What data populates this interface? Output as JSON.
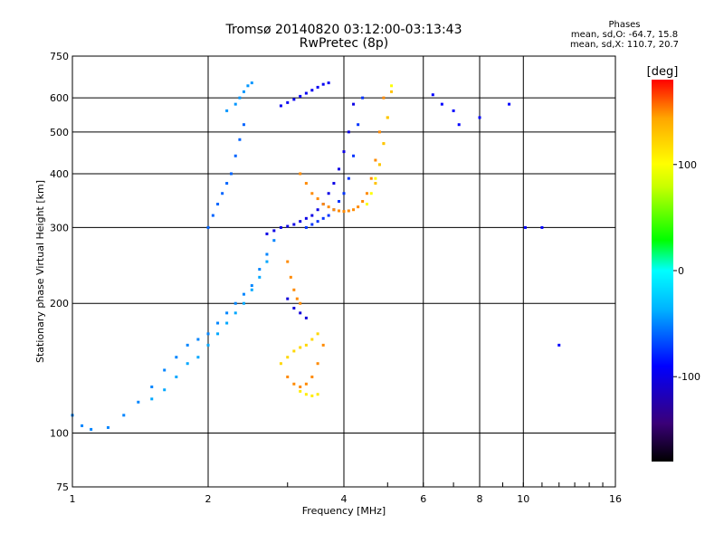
{
  "title_line1": "Tromsø 20140820 03:12:00-03:13:43",
  "title_line2": "RwPretec (8p)",
  "stats": {
    "heading": "Phases",
    "line1": "mean, sd,O: -64.7, 15.8",
    "line2": "mean, sd,X: 110.7, 20.7"
  },
  "chart_data": {
    "type": "scatter",
    "title": "Tromsø 20140820 03:12:00-03:13:43",
    "subtitle": "RwPretec (8p)",
    "xlabel": "Frequency [MHz]",
    "ylabel": "Stationary phase Virtual Height [km]",
    "x_scale": "log",
    "y_scale": "log",
    "xlim": [
      1,
      16
    ],
    "ylim": [
      75,
      750
    ],
    "x_ticks": [
      1,
      2,
      4,
      6,
      8,
      10,
      16
    ],
    "y_ticks": [
      75,
      100,
      200,
      300,
      400,
      500,
      600,
      750
    ],
    "grid": true,
    "colorbar": {
      "label": "[deg]",
      "range": [
        -180,
        180
      ],
      "ticks": [
        100,
        0,
        -100
      ],
      "colors": [
        "#000000",
        "#3a0078",
        "#0000ff",
        "#00b4ff",
        "#00ffff",
        "#00ff00",
        "#c8ff00",
        "#ffff00",
        "#ffa500",
        "#ff0000"
      ]
    },
    "series": [
      {
        "x": [
          1.0,
          1.05,
          1.1,
          1.2,
          1.3,
          1.4,
          1.5,
          1.6,
          1.7,
          1.8,
          1.9,
          2.0,
          2.1,
          2.2,
          2.3,
          2.4,
          2.5,
          2.6,
          2.7,
          2.8
        ],
        "y": [
          110,
          104,
          102,
          103,
          110,
          118,
          128,
          140,
          150,
          160,
          165,
          170,
          180,
          190,
          200,
          210,
          220,
          240,
          260,
          280
        ],
        "phase": -50
      },
      {
        "x": [
          1.5,
          1.6,
          1.7,
          1.8,
          1.9,
          2.0,
          2.1,
          2.2,
          2.3,
          2.4,
          2.5,
          2.6,
          2.7
        ],
        "y": [
          120,
          126,
          135,
          145,
          150,
          160,
          170,
          180,
          190,
          200,
          215,
          230,
          250
        ],
        "phase": -40
      },
      {
        "x": [
          2.0,
          2.05,
          2.1,
          2.15,
          2.2,
          2.25,
          2.3,
          2.35,
          2.4
        ],
        "y": [
          300,
          320,
          340,
          360,
          380,
          400,
          440,
          480,
          520
        ],
        "phase": -60
      },
      {
        "x": [
          2.2,
          2.3,
          2.35,
          2.4,
          2.45,
          2.5
        ],
        "y": [
          560,
          580,
          600,
          620,
          640,
          650
        ],
        "phase": -45
      },
      {
        "x": [
          2.7,
          2.8,
          2.9,
          3.0,
          3.1,
          3.2,
          3.3,
          3.4,
          3.5,
          3.6,
          3.7,
          3.8,
          3.9,
          4.0,
          4.1,
          4.2
        ],
        "y": [
          290,
          295,
          300,
          302,
          305,
          310,
          315,
          320,
          330,
          340,
          360,
          380,
          410,
          450,
          500,
          580
        ],
        "phase": -100
      },
      {
        "x": [
          2.9,
          3.0,
          3.1,
          3.2,
          3.3,
          3.4,
          3.5,
          3.6,
          3.7
        ],
        "y": [
          575,
          585,
          595,
          605,
          615,
          625,
          635,
          645,
          650
        ],
        "phase": -95
      },
      {
        "x": [
          3.3,
          3.4,
          3.5,
          3.6,
          3.7,
          3.8,
          3.9,
          4.0,
          4.1,
          4.2,
          4.3,
          4.4
        ],
        "y": [
          300,
          305,
          310,
          315,
          320,
          330,
          345,
          360,
          390,
          440,
          520,
          600
        ],
        "phase": -75
      },
      {
        "x": [
          3.2,
          3.3,
          3.4,
          3.5,
          3.6,
          3.7,
          3.8,
          3.9,
          4.0,
          4.1,
          4.2,
          4.3,
          4.4,
          4.5,
          4.6,
          4.7,
          4.8,
          4.9
        ],
        "y": [
          400,
          380,
          360,
          350,
          340,
          335,
          330,
          328,
          327,
          328,
          330,
          335,
          345,
          360,
          390,
          430,
          500,
          600
        ],
        "phase": 150
      },
      {
        "x": [
          4.5,
          4.6,
          4.7,
          4.8,
          4.9,
          5.0,
          5.1
        ],
        "y": [
          340,
          360,
          390,
          420,
          470,
          540,
          640
        ],
        "phase": 100
      },
      {
        "x": [
          4.7,
          4.8,
          4.9,
          5.0,
          5.1
        ],
        "y": [
          380,
          420,
          470,
          540,
          620
        ],
        "phase": 130
      },
      {
        "x": [
          3.0,
          3.05,
          3.1,
          3.15,
          3.2
        ],
        "y": [
          250,
          230,
          215,
          205,
          200
        ],
        "phase": 150
      },
      {
        "x": [
          3.0,
          3.1,
          3.2,
          3.3
        ],
        "y": [
          205,
          195,
          190,
          185
        ],
        "phase": -105
      },
      {
        "x": [
          2.9,
          3.0,
          3.1,
          3.2,
          3.3,
          3.4,
          3.5
        ],
        "y": [
          145,
          150,
          155,
          158,
          160,
          165,
          170
        ],
        "phase": 120
      },
      {
        "x": [
          3.0,
          3.1,
          3.2,
          3.3,
          3.4,
          3.5,
          3.6
        ],
        "y": [
          135,
          130,
          128,
          130,
          135,
          145,
          160
        ],
        "phase": 150
      },
      {
        "x": [
          3.2,
          3.3,
          3.4,
          3.5
        ],
        "y": [
          125,
          123,
          122,
          123
        ],
        "phase": 110
      },
      {
        "x": [
          6.3,
          6.6,
          7.0,
          7.2,
          8.0,
          9.3,
          10.1,
          11.0,
          12.0
        ],
        "y": [
          610,
          580,
          560,
          520,
          540,
          580,
          300,
          300,
          160
        ],
        "phase": -90
      }
    ]
  }
}
